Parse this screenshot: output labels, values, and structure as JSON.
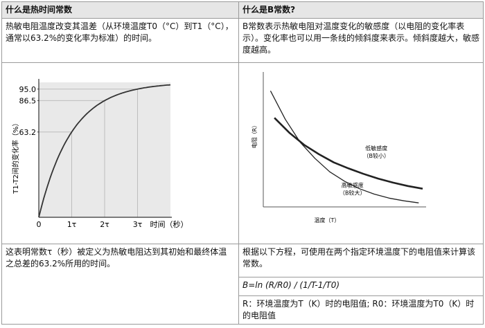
{
  "left": {
    "header": "什么是热时间常数",
    "description": "热敏电阻温度改变其温差（从环境温度T0（°C）到T1（°C），通常以63.2%的变化率为标准）的时间。",
    "footer": "这表明常数τ（秒）被定义为热敏电阻达到其初始和最终体温之总差的63.2%所用的时间。"
  },
  "right": {
    "header": "什么是B常数?",
    "description": "B常数表示热敏电阻对温度变化的敏感度（以电阻的变化率表示）。变化率也可以用一条线的倾斜度来表示。倾斜度越大，敏感度越高。",
    "footer": "根据以下方程，可使用在两个指定环境温度下的电阻值来计算该常数。",
    "formula": "B=ln (R/R0) / (1/T-1/T0)",
    "note": "R：环境温度为T（K）时的电阻值; R0：环境温度为T0（K）时的电阻值"
  },
  "chart_data": [
    {
      "type": "line",
      "ylabel": "T1-T2间的变化率（%）",
      "xlabel": "时间（秒）",
      "x_ticks": [
        "0",
        "1τ",
        "2τ",
        "3τ"
      ],
      "y_ticks": [
        "63.2",
        "86.5",
        "95.0"
      ],
      "grid": true,
      "series": [
        {
          "x": [
            0,
            0.5,
            1,
            1.5,
            2,
            2.5,
            3,
            3.5,
            4
          ],
          "values": [
            0,
            39.3,
            63.2,
            77.7,
            86.5,
            91.8,
            95.0,
            97.0,
            98.2
          ]
        }
      ],
      "line_color": "#333333",
      "grid_color": "#bdbdbd",
      "shade_color": "#e9e9e9"
    },
    {
      "type": "line",
      "ylabel": "电阻（R）",
      "xlabel": "温度（T）",
      "grid": false,
      "series": [
        {
          "name": "低敏感度（B较小）",
          "x": [
            0,
            1,
            2,
            3,
            4,
            5,
            6,
            7,
            8,
            9,
            10
          ],
          "values": [
            6.6,
            5.5,
            4.6,
            3.9,
            3.3,
            2.85,
            2.45,
            2.1,
            1.8,
            1.55,
            1.35
          ]
        },
        {
          "name": "高敏感度（B较大）",
          "x": [
            0,
            1,
            2,
            3,
            4,
            5,
            6,
            7,
            8,
            9,
            10
          ],
          "values": [
            8.6,
            6.5,
            4.8,
            3.6,
            2.6,
            1.9,
            1.35,
            0.95,
            0.65,
            0.45,
            0.3
          ]
        }
      ],
      "line_colors": [
        "#222222",
        "#222222"
      ],
      "line_widths": [
        2.6,
        1.3
      ]
    }
  ]
}
